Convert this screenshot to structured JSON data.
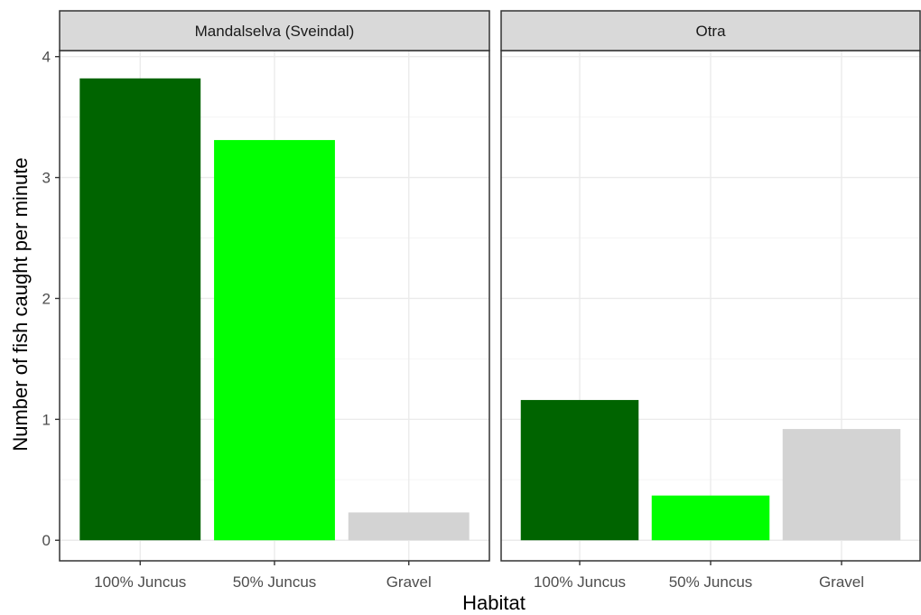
{
  "chart_data": {
    "type": "bar",
    "xlabel": "Habitat",
    "ylabel": "Number of fish caught per minute",
    "ylim": [
      -0.17,
      4.05
    ],
    "yticks": [
      0,
      1,
      2,
      3,
      4
    ],
    "ytick_labels": [
      "0",
      "1",
      "2",
      "3",
      "4"
    ],
    "grid": true,
    "legend": "none",
    "categories": [
      "100% Juncus",
      "50% Juncus",
      "Gravel"
    ],
    "category_colors": [
      "#006400",
      "#00ff00",
      "#d3d3d3"
    ],
    "panels": [
      {
        "name": "Mandalselva (Sveindal)",
        "values": [
          3.82,
          3.31,
          0.23
        ]
      },
      {
        "name": "Otra",
        "values": [
          1.16,
          0.37,
          0.92
        ]
      }
    ]
  },
  "colors": {
    "panel_border": "#333333",
    "strip_fill": "#d9d9d9",
    "grid_major": "#ebebeb",
    "grid_minor": "#f5f5f5"
  }
}
